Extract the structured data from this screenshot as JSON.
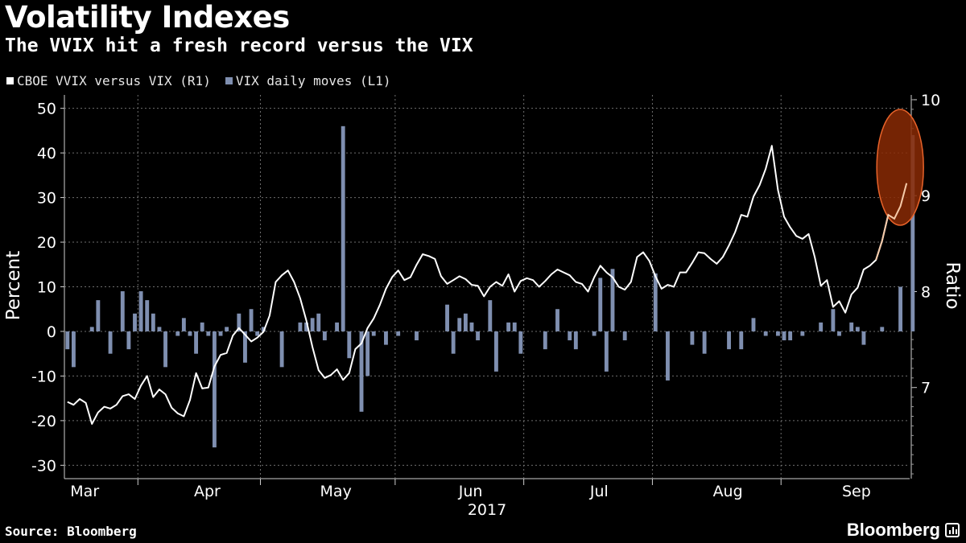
{
  "header": {
    "title": "Volatility Indexes",
    "subtitle": "The VVIX hit a fresh record versus the VIX"
  },
  "footer": {
    "source": "Source: Bloomberg",
    "brand": "Bloomberg"
  },
  "colors": {
    "background": "#000000",
    "line": "#ffffff",
    "bars": "#7f8fb0",
    "highlight_fill": "#8a2a05",
    "highlight_stroke": "#e8632a"
  },
  "chart_data": {
    "type": "bar+line",
    "title": "Volatility Indexes",
    "subtitle": "The VVIX hit a fresh record versus the VIX",
    "xlabel": "2017",
    "ylabel_left": "Percent",
    "ylabel_right": "Ratio",
    "ylim_left": [
      -33,
      53
    ],
    "ylim_right": [
      6.05,
      10.05
    ],
    "yticks_left": [
      50,
      40,
      30,
      20,
      10,
      0,
      -10,
      -20,
      -30
    ],
    "yticks_right": [
      10,
      9,
      8,
      7
    ],
    "month_ticks": [
      {
        "label": "Mar",
        "x": 2
      },
      {
        "label": "Apr",
        "x": 22
      },
      {
        "label": "May",
        "x": 43
      },
      {
        "label": "Jun",
        "x": 65
      },
      {
        "label": "Jul",
        "x": 86
      },
      {
        "label": "Aug",
        "x": 107
      },
      {
        "label": "Sep",
        "x": 128
      }
    ],
    "year_label": "2017",
    "n_days": 138,
    "legend": [
      {
        "name": "CBOE VVIX versus VIX (R1)",
        "color": "#ffffff"
      },
      {
        "name": "VIX daily moves (L1)",
        "color": "#7f8fb0"
      }
    ],
    "series": [
      {
        "name": "VIX daily moves (L1)",
        "axis": "left",
        "type": "bar",
        "values": [
          -4,
          -8,
          0,
          0,
          1,
          7,
          0,
          -5,
          0,
          9,
          -4,
          4,
          9,
          7,
          4,
          1,
          -8,
          0,
          -1,
          3,
          -1,
          -5,
          2,
          -1,
          -26,
          -1,
          1,
          0,
          4,
          -7,
          5,
          -1,
          1,
          0,
          0,
          -8,
          0,
          0,
          2,
          2,
          3,
          4,
          -2,
          0,
          2,
          46,
          -6,
          0,
          -18,
          -10,
          -1,
          0,
          -3,
          0,
          -1,
          0,
          0,
          -2,
          0,
          0,
          0,
          0,
          6,
          -5,
          3,
          4,
          2,
          -2,
          0,
          7,
          -9,
          0,
          2,
          2,
          -5,
          0,
          0,
          0,
          -4,
          0,
          5,
          0,
          -2,
          -4,
          0,
          0,
          -1,
          12,
          -9,
          14,
          0,
          -2,
          0,
          0,
          0,
          0,
          13,
          0,
          -11,
          0,
          0,
          0,
          -3,
          0,
          -5,
          0,
          0,
          0,
          -4,
          0,
          -4,
          0,
          3,
          0,
          -1,
          0,
          -1,
          -2,
          -2,
          0,
          -1,
          0,
          0,
          2,
          0,
          5,
          -1,
          0,
          2,
          1,
          -3,
          0,
          0,
          1,
          0,
          0,
          10,
          0,
          44
        ]
      },
      {
        "name": "CBOE VVIX versus VIX (R1)",
        "axis": "right",
        "type": "line",
        "values": [
          6.85,
          6.82,
          6.88,
          6.84,
          6.62,
          6.74,
          6.8,
          6.78,
          6.82,
          6.91,
          6.93,
          6.88,
          7.02,
          7.12,
          6.9,
          6.98,
          6.93,
          6.79,
          6.73,
          6.7,
          6.87,
          7.15,
          6.99,
          7.0,
          7.22,
          7.34,
          7.36,
          7.54,
          7.62,
          7.55,
          7.48,
          7.52,
          7.58,
          7.75,
          8.1,
          8.17,
          8.22,
          8.1,
          7.93,
          7.7,
          7.42,
          7.18,
          7.1,
          7.13,
          7.19,
          7.08,
          7.15,
          7.4,
          7.46,
          7.62,
          7.72,
          7.86,
          8.03,
          8.15,
          8.22,
          8.12,
          8.15,
          8.28,
          8.39,
          8.37,
          8.34,
          8.16,
          8.08,
          8.12,
          8.16,
          8.13,
          8.07,
          8.06,
          7.95,
          8.05,
          8.1,
          8.06,
          8.18,
          8.0,
          8.11,
          8.14,
          8.12,
          8.05,
          8.11,
          8.18,
          8.23,
          8.2,
          8.17,
          8.1,
          8.08,
          8.0,
          8.15,
          8.27,
          8.2,
          8.15,
          8.05,
          8.02,
          8.1,
          8.36,
          8.41,
          8.32,
          8.16,
          8.03,
          8.07,
          8.05,
          8.2,
          8.2,
          8.3,
          8.41,
          8.4,
          8.34,
          8.29,
          8.36,
          8.48,
          8.62,
          8.8,
          8.78,
          8.99,
          9.11,
          9.28,
          9.52,
          9.06,
          8.78,
          8.67,
          8.58,
          8.55,
          8.6,
          8.36,
          8.06,
          8.12,
          7.84,
          7.9,
          7.78,
          7.97,
          8.04,
          8.23,
          8.27,
          8.33,
          8.53,
          8.8,
          8.76,
          8.89,
          9.13
        ]
      }
    ]
  }
}
